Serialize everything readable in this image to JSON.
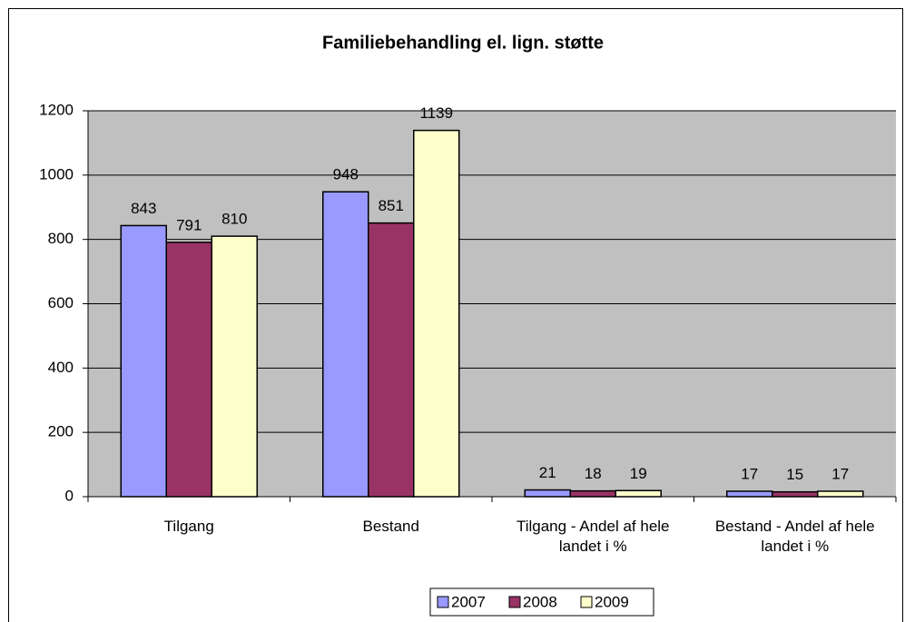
{
  "chart_data": {
    "type": "bar",
    "title": "Familiebehandling el. lign. støtte",
    "categories": [
      "Tilgang",
      "Bestand",
      "Tilgang - Andel af hele landet i %",
      "Bestand - Andel af hele landet i %"
    ],
    "series": [
      {
        "name": "2007",
        "color": "#9999ff",
        "values": [
          843,
          948,
          21,
          17
        ]
      },
      {
        "name": "2008",
        "color": "#993366",
        "values": [
          791,
          851,
          18,
          15
        ]
      },
      {
        "name": "2009",
        "color": "#ffffcc",
        "values": [
          810,
          1139,
          19,
          17
        ]
      }
    ],
    "ylim": [
      0,
      1200
    ],
    "yticks": [
      0,
      200,
      400,
      600,
      800,
      1000,
      1200
    ],
    "grid": true,
    "legend": "bottom"
  }
}
